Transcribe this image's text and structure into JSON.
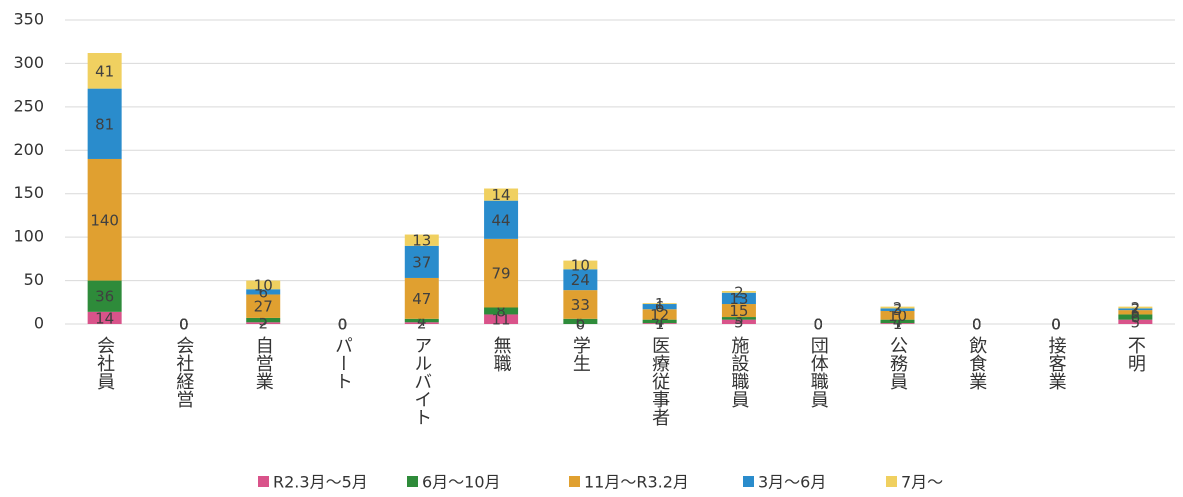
{
  "chart_data": {
    "type": "stacked_bar",
    "categories": [
      "会社員",
      "会社経営",
      "自営業",
      "パート",
      "アルバイト",
      "無職",
      "学生",
      "医療従事者",
      "施設職員",
      "団体職員",
      "公務員",
      "飲食業",
      "接客業",
      "不明"
    ],
    "series": [
      {
        "name": "R2.3月～5月",
        "color": "#d9538a",
        "values": [
          14,
          0,
          2,
          0,
          2,
          11,
          0,
          1,
          5,
          0,
          1,
          0,
          0,
          5
        ]
      },
      {
        "name": "6月～10月",
        "color": "#2e8b3a",
        "values": [
          36,
          0,
          5,
          0,
          4,
          8,
          6,
          4,
          3,
          0,
          4,
          0,
          0,
          6
        ]
      },
      {
        "name": "11月～R3.2月",
        "color": "#e0a030",
        "values": [
          140,
          0,
          27,
          0,
          47,
          79,
          33,
          12,
          15,
          0,
          10,
          0,
          0,
          5
        ]
      },
      {
        "name": "3月～6月",
        "color": "#2a8ccc",
        "values": [
          81,
          0,
          6,
          0,
          37,
          44,
          24,
          6,
          13,
          0,
          3,
          0,
          0,
          2
        ]
      },
      {
        "name": "7月～",
        "color": "#f0d060",
        "values": [
          41,
          0,
          10,
          0,
          13,
          14,
          10,
          1,
          2,
          0,
          2,
          0,
          0,
          2
        ]
      }
    ],
    "ylim": [
      0,
      350
    ],
    "yticks": [
      0,
      50,
      100,
      150,
      200,
      250,
      300,
      350
    ],
    "grid": true,
    "legend": "bottom"
  }
}
